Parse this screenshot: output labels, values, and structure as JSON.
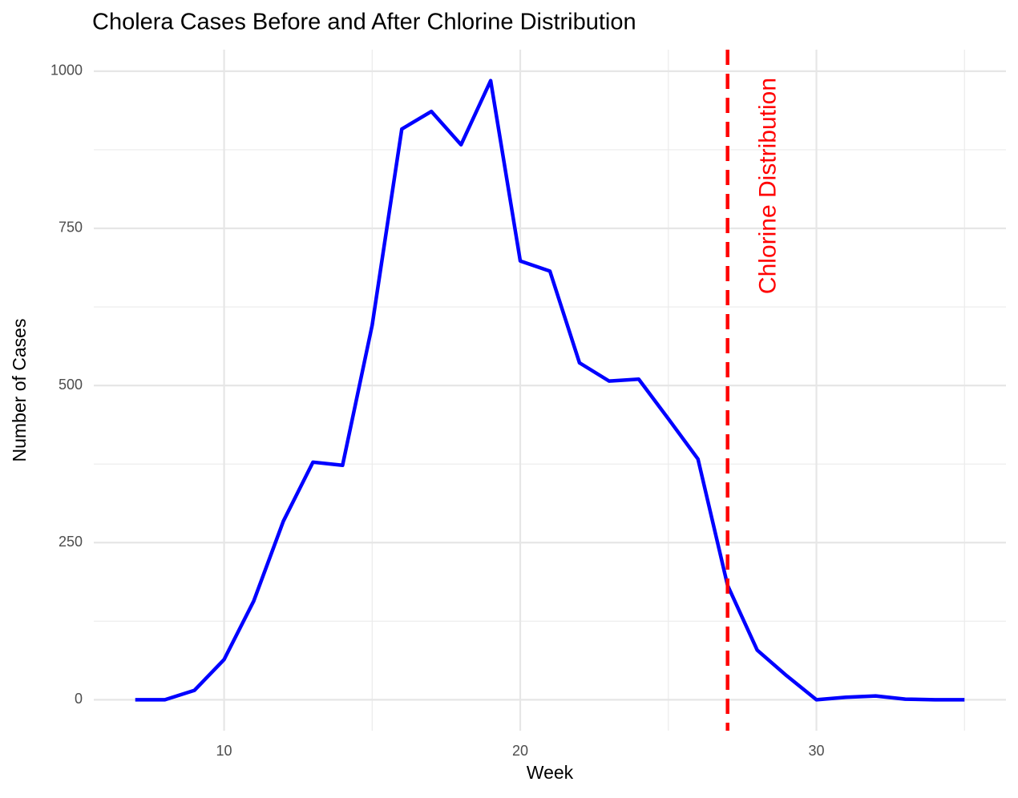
{
  "chart_data": {
    "type": "line",
    "title": "Cholera Cases Before and After Chlorine Distribution",
    "x_label": "Week",
    "y_label": "Number of Cases",
    "x": [
      7,
      8,
      9,
      10,
      11,
      12,
      13,
      14,
      15,
      16,
      17,
      18,
      19,
      20,
      21,
      22,
      23,
      24,
      25,
      26,
      27,
      28,
      29,
      30,
      31,
      32,
      33,
      34,
      35
    ],
    "series": [
      {
        "name": "Cases",
        "color": "#0000ff",
        "values": [
          0,
          0,
          15,
          64,
          157,
          284,
          378,
          373,
          596,
          908,
          936,
          883,
          985,
          698,
          682,
          536,
          507,
          510,
          447,
          383,
          182,
          79,
          38,
          0,
          4,
          6,
          1,
          0,
          0
        ]
      }
    ],
    "xlim": [
      5.6,
      36.4
    ],
    "xticks": [
      10,
      20,
      30
    ],
    "x_minor_grid": [
      15,
      25,
      35
    ],
    "ylim": [
      -49.25,
      1034.25
    ],
    "yticks": [
      0,
      250,
      500,
      750,
      1000
    ],
    "y_minor_grid": [
      125,
      375,
      625,
      875
    ],
    "grid": true,
    "vline": {
      "x": 27,
      "color": "#ff0000",
      "label": "Chlorine Distribution"
    }
  }
}
